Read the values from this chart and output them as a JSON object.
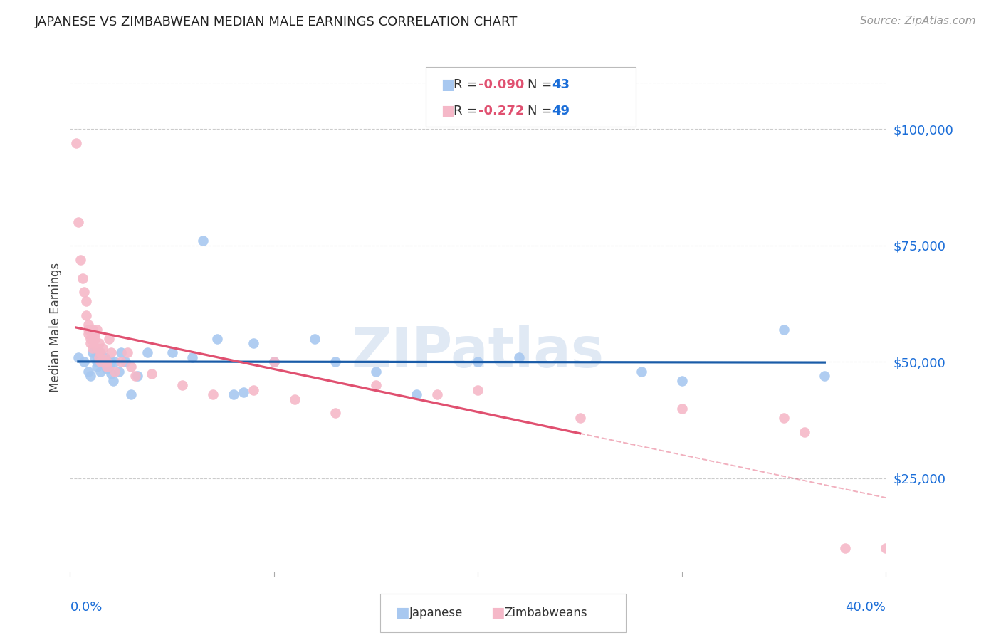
{
  "title": "JAPANESE VS ZIMBABWEAN MEDIAN MALE EARNINGS CORRELATION CHART",
  "source": "Source: ZipAtlas.com",
  "ylabel": "Median Male Earnings",
  "ytick_labels": [
    "$25,000",
    "$50,000",
    "$75,000",
    "$100,000"
  ],
  "ytick_values": [
    25000,
    50000,
    75000,
    100000
  ],
  "ylim": [
    5000,
    110000
  ],
  "xlim": [
    0.0,
    0.4
  ],
  "legend_R_blue": "-0.090",
  "legend_N_blue": "43",
  "legend_R_pink": "-0.272",
  "legend_N_pink": "49",
  "watermark": "ZIPatlas",
  "blue_color": "#A8C8F0",
  "pink_color": "#F5B8C8",
  "blue_line_color": "#1A5CA8",
  "pink_line_color": "#E05070",
  "background_color": "#FFFFFF",
  "japanese_x": [
    0.004,
    0.007,
    0.009,
    0.01,
    0.011,
    0.012,
    0.013,
    0.013,
    0.014,
    0.015,
    0.015,
    0.016,
    0.017,
    0.018,
    0.019,
    0.02,
    0.02,
    0.021,
    0.022,
    0.024,
    0.025,
    0.027,
    0.03,
    0.033,
    0.038,
    0.05,
    0.06,
    0.065,
    0.072,
    0.08,
    0.085,
    0.09,
    0.1,
    0.12,
    0.13,
    0.15,
    0.17,
    0.2,
    0.22,
    0.28,
    0.3,
    0.35,
    0.37
  ],
  "japanese_y": [
    51000,
    50000,
    48000,
    47000,
    52000,
    51000,
    50000,
    49000,
    52000,
    50500,
    48000,
    50000,
    51000,
    48500,
    49000,
    47500,
    50000,
    46000,
    50000,
    48000,
    52000,
    50000,
    43000,
    47000,
    52000,
    52000,
    51000,
    76000,
    55000,
    43000,
    43500,
    54000,
    50000,
    55000,
    50000,
    48000,
    43000,
    50000,
    51000,
    48000,
    46000,
    57000,
    47000
  ],
  "zimbabwean_x": [
    0.003,
    0.004,
    0.005,
    0.006,
    0.007,
    0.008,
    0.008,
    0.009,
    0.009,
    0.009,
    0.01,
    0.01,
    0.011,
    0.011,
    0.012,
    0.012,
    0.013,
    0.013,
    0.014,
    0.014,
    0.015,
    0.015,
    0.016,
    0.017,
    0.018,
    0.018,
    0.019,
    0.02,
    0.022,
    0.025,
    0.028,
    0.03,
    0.032,
    0.04,
    0.055,
    0.07,
    0.09,
    0.1,
    0.11,
    0.13,
    0.15,
    0.18,
    0.2,
    0.25,
    0.3,
    0.35,
    0.36,
    0.38,
    0.4
  ],
  "zimbabwean_y": [
    97000,
    80000,
    72000,
    68000,
    65000,
    63000,
    60000,
    58000,
    56000,
    57000,
    55000,
    54000,
    57000,
    53000,
    55000,
    56000,
    57000,
    53000,
    54000,
    51000,
    52000,
    50000,
    53000,
    50500,
    50000,
    49000,
    55000,
    52000,
    48000,
    50000,
    52000,
    49000,
    47000,
    47500,
    45000,
    43000,
    44000,
    50000,
    42000,
    39000,
    45000,
    43000,
    44000,
    38000,
    40000,
    38000,
    35000,
    10000,
    10000
  ]
}
